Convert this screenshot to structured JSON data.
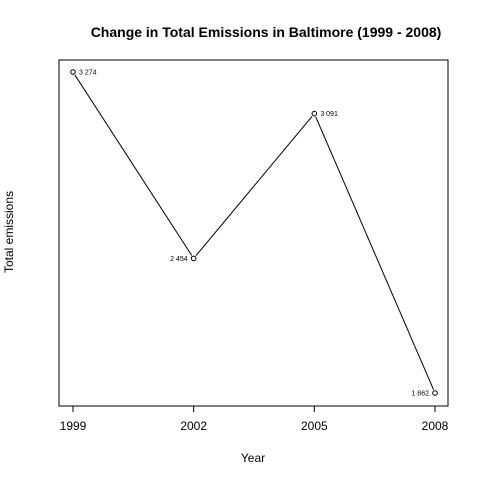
{
  "chart_data": {
    "type": "line",
    "title": "Change in Total Emissions in Baltimore (1999 - 2008)",
    "xlabel": "Year",
    "ylabel": "Total emissions",
    "x": [
      1999,
      2002,
      2005,
      2008
    ],
    "x_tick_labels": [
      "1999",
      "2002",
      "2005",
      "2008"
    ],
    "series": [
      {
        "values": [
          3274,
          2454,
          3091,
          1862
        ],
        "point_labels": [
          "3 274",
          "2 454",
          "3 091",
          "1 862"
        ]
      }
    ],
    "xlim": [
      1999,
      2008
    ],
    "ylim": [
      1862,
      3274
    ],
    "y_ticks_shown": false,
    "grid": false,
    "marker": "open-circle",
    "line_color": "#000000"
  }
}
